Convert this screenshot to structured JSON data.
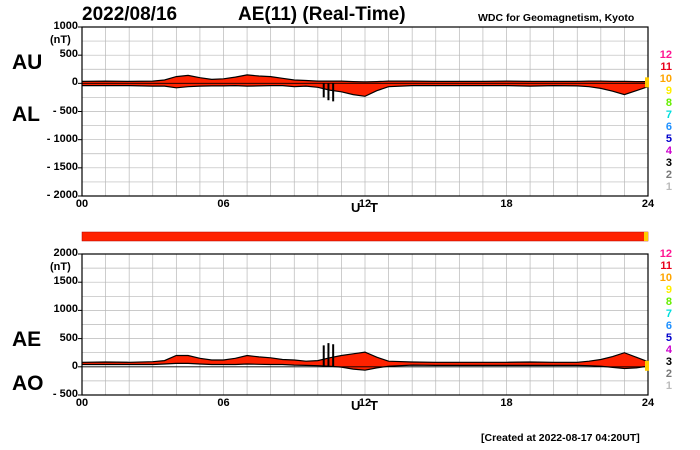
{
  "header": {
    "date": "2022/08/16",
    "title": "AE(11) (Real-Time)",
    "source": "WDC for Geomagnetism, Kyoto"
  },
  "footer": {
    "created": "[Created at 2022-08-17 04:20UT]"
  },
  "panel_labels": {
    "au": "AU",
    "al": "AL",
    "ae": "AE",
    "ao": "AO"
  },
  "unit": "(nT)",
  "axis_title": "U T",
  "colors": {
    "fill": "#ff2200",
    "line": "#000000",
    "grid": "#b8b8b8"
  },
  "station_scale": [
    {
      "label": "12",
      "color": "#ff1493"
    },
    {
      "label": "11",
      "color": "#e8001c"
    },
    {
      "label": "10",
      "color": "#ffa500"
    },
    {
      "label": "9",
      "color": "#ffee00"
    },
    {
      "label": "8",
      "color": "#66ee00"
    },
    {
      "label": "7",
      "color": "#00dddd"
    },
    {
      "label": "6",
      "color": "#1e90ff"
    },
    {
      "label": "5",
      "color": "#0000cc"
    },
    {
      "label": "4",
      "color": "#cc00cc"
    },
    {
      "label": "3",
      "color": "#000000"
    },
    {
      "label": "2",
      "color": "#777777"
    },
    {
      "label": "1",
      "color": "#bbbbbb"
    }
  ],
  "chart_data": [
    {
      "type": "area",
      "panel": "AU/AL",
      "x_ticks": [
        "00",
        "06",
        "12",
        "18",
        "24"
      ],
      "xlim": [
        0,
        24
      ],
      "ylim": [
        -2000,
        1000
      ],
      "y_ticks": [
        "1000",
        "500",
        "0",
        "- 500",
        "- 1000",
        "- 1500",
        "- 2000"
      ],
      "y_tick_values": [
        1000,
        500,
        0,
        -500,
        -1000,
        -1500,
        -2000
      ],
      "x": [
        0,
        1,
        2,
        3,
        3.5,
        4,
        4.5,
        5,
        5.5,
        6,
        6.5,
        7,
        7.5,
        8,
        8.5,
        9,
        9.5,
        10,
        10.5,
        11,
        11.5,
        12,
        12.5,
        13,
        14,
        15,
        16,
        17,
        18,
        19,
        20,
        21,
        21.5,
        22,
        22.5,
        23,
        23.5,
        24
      ],
      "series": [
        {
          "name": "AU",
          "values": [
            35,
            40,
            35,
            40,
            60,
            120,
            140,
            100,
            70,
            80,
            110,
            150,
            130,
            120,
            90,
            60,
            50,
            40,
            40,
            40,
            30,
            25,
            30,
            40,
            40,
            35,
            35,
            35,
            40,
            35,
            35,
            35,
            40,
            40,
            35,
            35,
            30,
            30
          ]
        },
        {
          "name": "AL",
          "values": [
            -40,
            -40,
            -40,
            -50,
            -50,
            -80,
            -60,
            -50,
            -45,
            -45,
            -40,
            -50,
            -45,
            -40,
            -40,
            -60,
            -50,
            -70,
            -120,
            -150,
            -200,
            -230,
            -130,
            -60,
            -40,
            -40,
            -40,
            -40,
            -40,
            -50,
            -40,
            -45,
            -60,
            -90,
            -140,
            -200,
            -130,
            -60
          ]
        }
      ],
      "spikes_al": [
        {
          "x": 10.25,
          "value": -250
        },
        {
          "x": 10.45,
          "value": -300
        },
        {
          "x": 10.65,
          "value": -320
        }
      ]
    },
    {
      "type": "area",
      "panel": "AE/AO",
      "x_ticks": [
        "00",
        "06",
        "12",
        "18",
        "24"
      ],
      "xlim": [
        0,
        24
      ],
      "ylim": [
        -500,
        2000
      ],
      "y_ticks": [
        "2000",
        "1500",
        "1000",
        "500",
        "0",
        "- 500"
      ],
      "y_tick_values": [
        2000,
        1500,
        1000,
        500,
        0,
        -500
      ],
      "x": [
        0,
        1,
        2,
        3,
        3.5,
        4,
        4.5,
        5,
        5.5,
        6,
        6.5,
        7,
        7.5,
        8,
        8.5,
        9,
        9.5,
        10,
        10.5,
        11,
        11.5,
        12,
        12.5,
        13,
        14,
        15,
        16,
        17,
        18,
        19,
        20,
        21,
        21.5,
        22,
        22.5,
        23,
        23.5,
        24
      ],
      "series": [
        {
          "name": "AE",
          "values": [
            80,
            85,
            80,
            90,
            110,
            200,
            200,
            150,
            120,
            120,
            150,
            200,
            175,
            160,
            130,
            120,
            100,
            110,
            160,
            200,
            230,
            260,
            170,
            100,
            85,
            80,
            80,
            80,
            80,
            85,
            80,
            80,
            100,
            130,
            180,
            250,
            170,
            90
          ]
        },
        {
          "name": "AO",
          "values": [
            40,
            40,
            40,
            40,
            50,
            60,
            60,
            50,
            40,
            40,
            40,
            50,
            45,
            40,
            40,
            30,
            25,
            20,
            10,
            -5,
            -40,
            -60,
            -20,
            10,
            30,
            25,
            25,
            25,
            25,
            25,
            25,
            25,
            20,
            10,
            -10,
            -30,
            -20,
            10
          ]
        }
      ],
      "spikes_ae": [
        {
          "x": 10.25,
          "value": 380
        },
        {
          "x": 10.45,
          "value": 420
        },
        {
          "x": 10.65,
          "value": 400
        }
      ]
    }
  ]
}
